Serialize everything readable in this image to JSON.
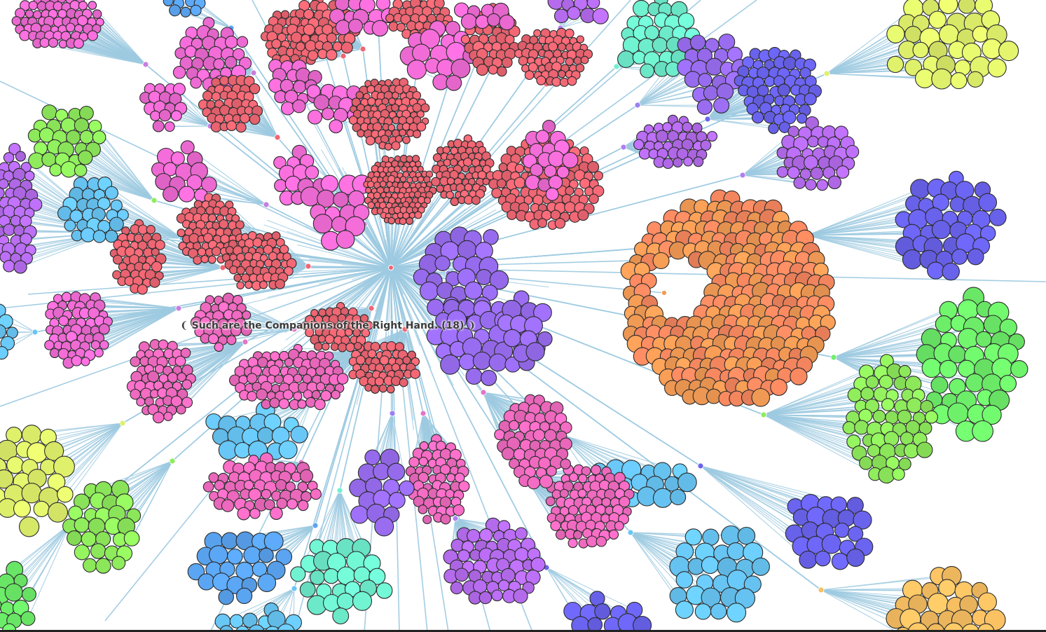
{
  "tooltip": {
    "text": "❨ Such are the Companions of the Right Hand. (18) ❩"
  },
  "style": {
    "link_color": "#9ecae1",
    "node_stroke": "#2b2b2b",
    "background": "#ffffff"
  },
  "palette": {
    "magenta": "#f06bd5",
    "coral": "#ef6673",
    "pink": "#f26bc2",
    "violet": "#b76cf0",
    "purple": "#9a6df2",
    "indigo": "#6a63ee",
    "blue": "#5aa5f2",
    "sky": "#68c6f5",
    "aqua": "#6ff0cf",
    "lime": "#8fec5c",
    "green": "#6ef06a",
    "yellow": "#dff06b",
    "orange": "#f39b55",
    "salmon": "#f4865e",
    "amber": "#f8bf62"
  }
}
